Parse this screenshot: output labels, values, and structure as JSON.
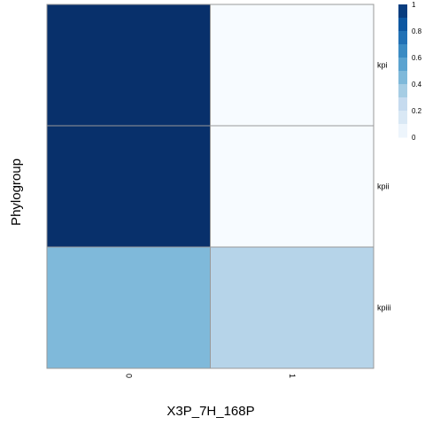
{
  "chart_data": {
    "type": "heatmap",
    "xlabel": "X3P_7H_168P",
    "ylabel": "Phylogroup",
    "x_categories": [
      "0",
      "1"
    ],
    "y_categories": [
      "kpi",
      "kpii",
      "kpiii"
    ],
    "values": [
      [
        1.0,
        0.0
      ],
      [
        1.0,
        0.0
      ],
      [
        0.45,
        0.3
      ]
    ],
    "value_range": [
      0,
      1
    ],
    "legend": {
      "ticks": [
        "1",
        "0.8",
        "0.6",
        "0.4",
        "0.2",
        "0"
      ],
      "tick_values": [
        1,
        0.8,
        0.6,
        0.4,
        0.2,
        0
      ],
      "steps": 10,
      "placement": "right"
    },
    "colors": [
      "#f7fbff",
      "#deebf7",
      "#c6dbef",
      "#9ecae1",
      "#6baed6",
      "#4292c6",
      "#2171b5",
      "#08519c",
      "#08306b"
    ],
    "cell_border_color": "#999999"
  }
}
